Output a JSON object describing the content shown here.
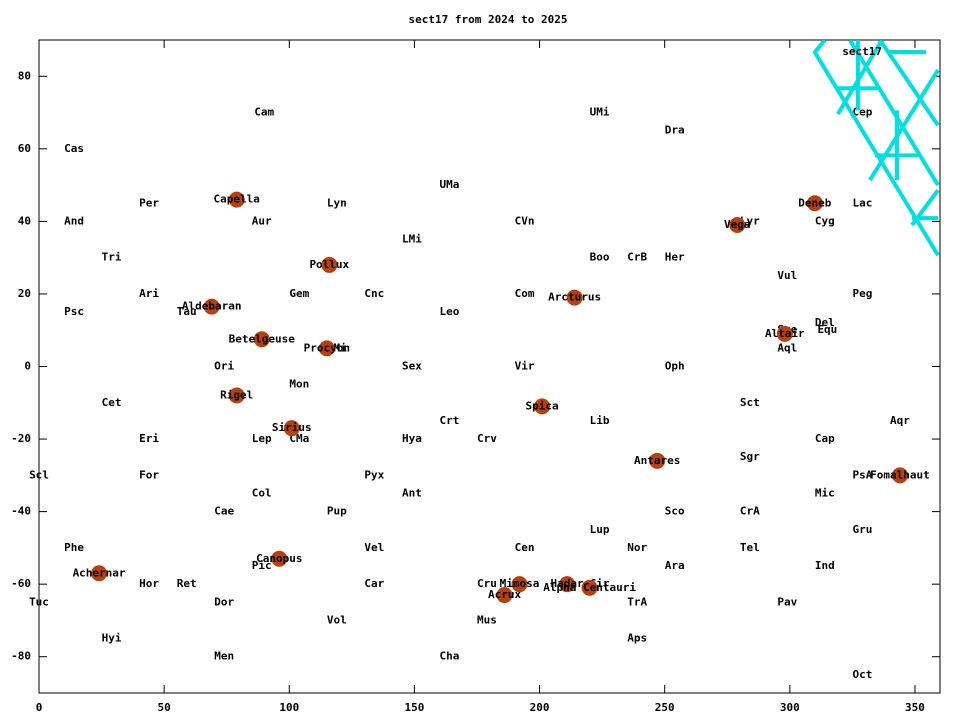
{
  "chart_data": {
    "type": "scatter",
    "title": "sect17 from 2024 to 2025",
    "xlim": [
      0,
      360
    ],
    "ylim": [
      -90,
      90
    ],
    "xticks": [
      0,
      50,
      100,
      150,
      200,
      250,
      300,
      350
    ],
    "yticks": [
      -80,
      -60,
      -40,
      -20,
      0,
      20,
      40,
      60,
      80
    ],
    "legend": "upper right",
    "series": [
      {
        "name": "sect17",
        "color": "#00e0e0",
        "x": [
          314,
          310,
          359.2,
          null,
          324,
          359.2,
          null,
          336,
          359.2,
          null,
          319.2,
          336.8,
          null,
          332,
          359.2,
          null,
          348.8,
          359.2,
          null,
          319.2,
          336,
          null,
          334,
          351.2,
          null,
          348.8,
          359.2,
          null,
          327.2,
          327.2,
          null,
          342.8,
          342.8
        ],
        "y": [
          90,
          86.6,
          30.7,
          null,
          90,
          50,
          null,
          90,
          66.5,
          null,
          69.6,
          90,
          null,
          51.4,
          81.7,
          null,
          39,
          48.6,
          null,
          76.7,
          76.7,
          null,
          58.2,
          58.2,
          null,
          40.9,
          40.9,
          null,
          90,
          70.6,
          null,
          70.6,
          51.4
        ]
      }
    ],
    "stars": {
      "color": "#b8400c",
      "names": [
        "Capella",
        "Aldebaran",
        "Betelgeuse",
        "Rigel",
        "Sirius",
        "Procyon",
        "Pollux",
        "Canopus",
        "Achernar",
        "Mimosa",
        "Acrux",
        "Hadar",
        "Alpha Centauri",
        "Spica",
        "Arcturus",
        "Antares",
        "Vega",
        "Altair",
        "Deneb",
        "Fomalhaut"
      ],
      "x": [
        79,
        69,
        89,
        79,
        101,
        115,
        116,
        96,
        24,
        192,
        186,
        211,
        220,
        201,
        214,
        247,
        279,
        298,
        310,
        344
      ],
      "y": [
        46,
        16.5,
        7.5,
        -8,
        -17,
        5,
        28,
        -53,
        -57,
        -60,
        -63,
        -60,
        -61,
        -11,
        19,
        -26,
        39,
        9,
        45,
        -30
      ]
    },
    "constellations": {
      "names": [
        "Cam",
        "UMi",
        "Dra",
        "Cas",
        "UMa",
        "Per",
        "Lyn",
        "Lac",
        "And",
        "Aur",
        "CVn",
        "Lyr",
        "Cyg",
        "LMi",
        "Tri",
        "Boo",
        "CrB",
        "Her",
        "Vul",
        "Ari",
        "Gem",
        "Cnc",
        "Com",
        "Peg",
        "Psc",
        "Tau",
        "Leo",
        "Sge",
        "Del",
        "Equ",
        "Aql",
        "CMi",
        "Ori",
        "Sex",
        "Vir",
        "Oph",
        "Mon",
        "Cet",
        "Sct",
        "Crt",
        "Lib",
        "Aqr",
        "Eri",
        "Lep",
        "CMa",
        "Hya",
        "Crv",
        "Cap",
        "Sgr",
        "Scl",
        "For",
        "Pyx",
        "PsA",
        "Col",
        "Ant",
        "Mic",
        "Cae",
        "Pup",
        "Sco",
        "CrA",
        "Lup",
        "Gru",
        "Phe",
        "Vel",
        "Cen",
        "Nor",
        "Tel",
        "Pic",
        "Ara",
        "Ind",
        "Hor",
        "Ret",
        "Car",
        "Cru",
        "Cir",
        "Tuc",
        "Dor",
        "TrA",
        "Pav",
        "Hyi",
        "Vol",
        "Mus",
        "Aps",
        "Men",
        "Cha",
        "Oct",
        "Cep"
      ],
      "x": [
        90,
        224,
        254,
        14,
        164,
        44,
        119,
        329,
        14,
        89,
        194,
        284,
        314,
        149,
        29,
        224,
        239,
        254,
        299,
        44,
        104,
        134,
        194,
        329,
        14,
        59,
        164,
        299,
        314,
        315,
        299,
        119,
        74,
        149,
        194,
        254,
        104,
        29,
        284,
        164,
        224,
        344,
        44,
        89,
        104,
        149,
        179,
        314,
        284,
        0,
        44,
        134,
        329,
        89,
        149,
        314,
        74,
        119,
        254,
        284,
        224,
        329,
        14,
        134,
        194,
        239,
        284,
        89,
        254,
        314,
        44,
        59,
        134,
        179,
        224,
        0,
        74,
        239,
        299,
        29,
        119,
        179,
        239,
        74,
        164,
        329,
        329
      ],
      "y": [
        70,
        70,
        65,
        60,
        50,
        45,
        45,
        45,
        40,
        40,
        40,
        40,
        40,
        35,
        30,
        30,
        30,
        30,
        25,
        20,
        20,
        20,
        20,
        20,
        15,
        15,
        15,
        10,
        12,
        10,
        5,
        5,
        0,
        0,
        0,
        0,
        -5,
        -10,
        -10,
        -15,
        -15,
        -15,
        -20,
        -20,
        -20,
        -20,
        -20,
        -20,
        -25,
        -30,
        -30,
        -30,
        -30,
        -35,
        -35,
        -35,
        -40,
        -40,
        -40,
        -40,
        -45,
        -45,
        -50,
        -50,
        -50,
        -50,
        -50,
        -55,
        -55,
        -55,
        -60,
        -60,
        -60,
        -60,
        -60,
        -65,
        -65,
        -65,
        -65,
        -75,
        -70,
        -70,
        -75,
        -80,
        -80,
        -85,
        70
      ]
    }
  }
}
